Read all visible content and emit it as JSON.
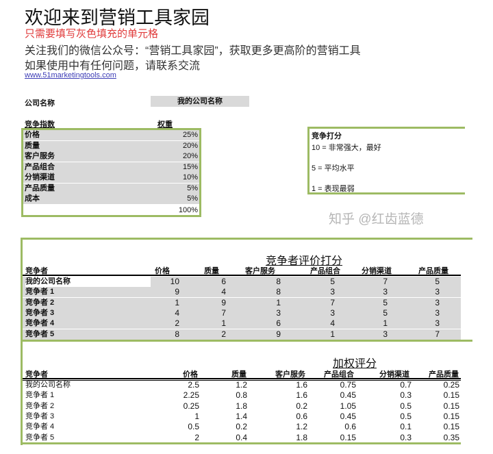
{
  "header": {
    "title": "欢迎来到营销工具家园",
    "instruction": "只需要填写灰色填充的单元格",
    "follow": "关注我们的微信公众号：“营销工具家园”，获取更多更高阶的营销工具",
    "contact": "如果使用中有任何问题，请联系交流",
    "link": "www.51marketingtools.com"
  },
  "company": {
    "label": "公司名称",
    "value": "我的公司名称"
  },
  "weights": {
    "col_label": "竞争指数",
    "col_weight": "权重",
    "items": [
      {
        "name": "价格",
        "weight": "25%"
      },
      {
        "name": "质量",
        "weight": "20%"
      },
      {
        "name": "客户服务",
        "weight": "20%"
      },
      {
        "name": "产品组合",
        "weight": "15%"
      },
      {
        "name": "分销渠道",
        "weight": "10%"
      },
      {
        "name": "产品质量",
        "weight": "5%"
      },
      {
        "name": "成本",
        "weight": "5%"
      }
    ],
    "total": "100%"
  },
  "legend": {
    "title": "竞争打分",
    "lines": [
      "10 = 非常强大，最好",
      "5 = 平均水平",
      "1 = 表现最弱"
    ]
  },
  "scores": {
    "title": "竞争者评价打分",
    "headers": [
      "竞争者",
      "价格",
      "质量",
      "客户服务",
      "产品组合",
      "分销渠道",
      "产品质量"
    ],
    "rows": [
      [
        "我的公司名称",
        "10",
        "6",
        "8",
        "5",
        "7",
        "5"
      ],
      [
        "竞争者 1",
        "9",
        "4",
        "8",
        "3",
        "3",
        "3"
      ],
      [
        "竞争者 2",
        "1",
        "9",
        "1",
        "7",
        "5",
        "3"
      ],
      [
        "竞争者 3",
        "4",
        "7",
        "3",
        "3",
        "5",
        "3"
      ],
      [
        "竞争者 4",
        "2",
        "1",
        "6",
        "4",
        "1",
        "3"
      ],
      [
        "竞争者 5",
        "8",
        "2",
        "9",
        "1",
        "3",
        "7"
      ]
    ]
  },
  "weighted": {
    "title": "加权评分",
    "headers": [
      "竞争者",
      "价格",
      "质量",
      "客户服务",
      "产品组合",
      "分销渠道",
      "产品质量"
    ],
    "rows": [
      [
        "我的公司名称",
        "2.5",
        "1.2",
        "1.6",
        "0.75",
        "0.7",
        "0.25"
      ],
      [
        "竞争者 1",
        "2.25",
        "0.8",
        "1.6",
        "0.45",
        "0.3",
        "0.15"
      ],
      [
        "竞争者 2",
        "0.25",
        "1.8",
        "0.2",
        "1.05",
        "0.5",
        "0.15"
      ],
      [
        "竞争者 3",
        "1",
        "1.4",
        "0.6",
        "0.45",
        "0.5",
        "0.15"
      ],
      [
        "竞争者 4",
        "0.5",
        "0.2",
        "1.2",
        "0.6",
        "0.1",
        "0.15"
      ],
      [
        "竞争者 5",
        "2",
        "0.4",
        "1.8",
        "0.15",
        "0.3",
        "0.35"
      ]
    ]
  },
  "watermark": "知乎 @红齿蓝德",
  "colors": {
    "accent_border": "#9dbb63",
    "input_fill": "#d9d9d9",
    "instruction": "#e03a3a",
    "link": "#3b3bb5"
  }
}
